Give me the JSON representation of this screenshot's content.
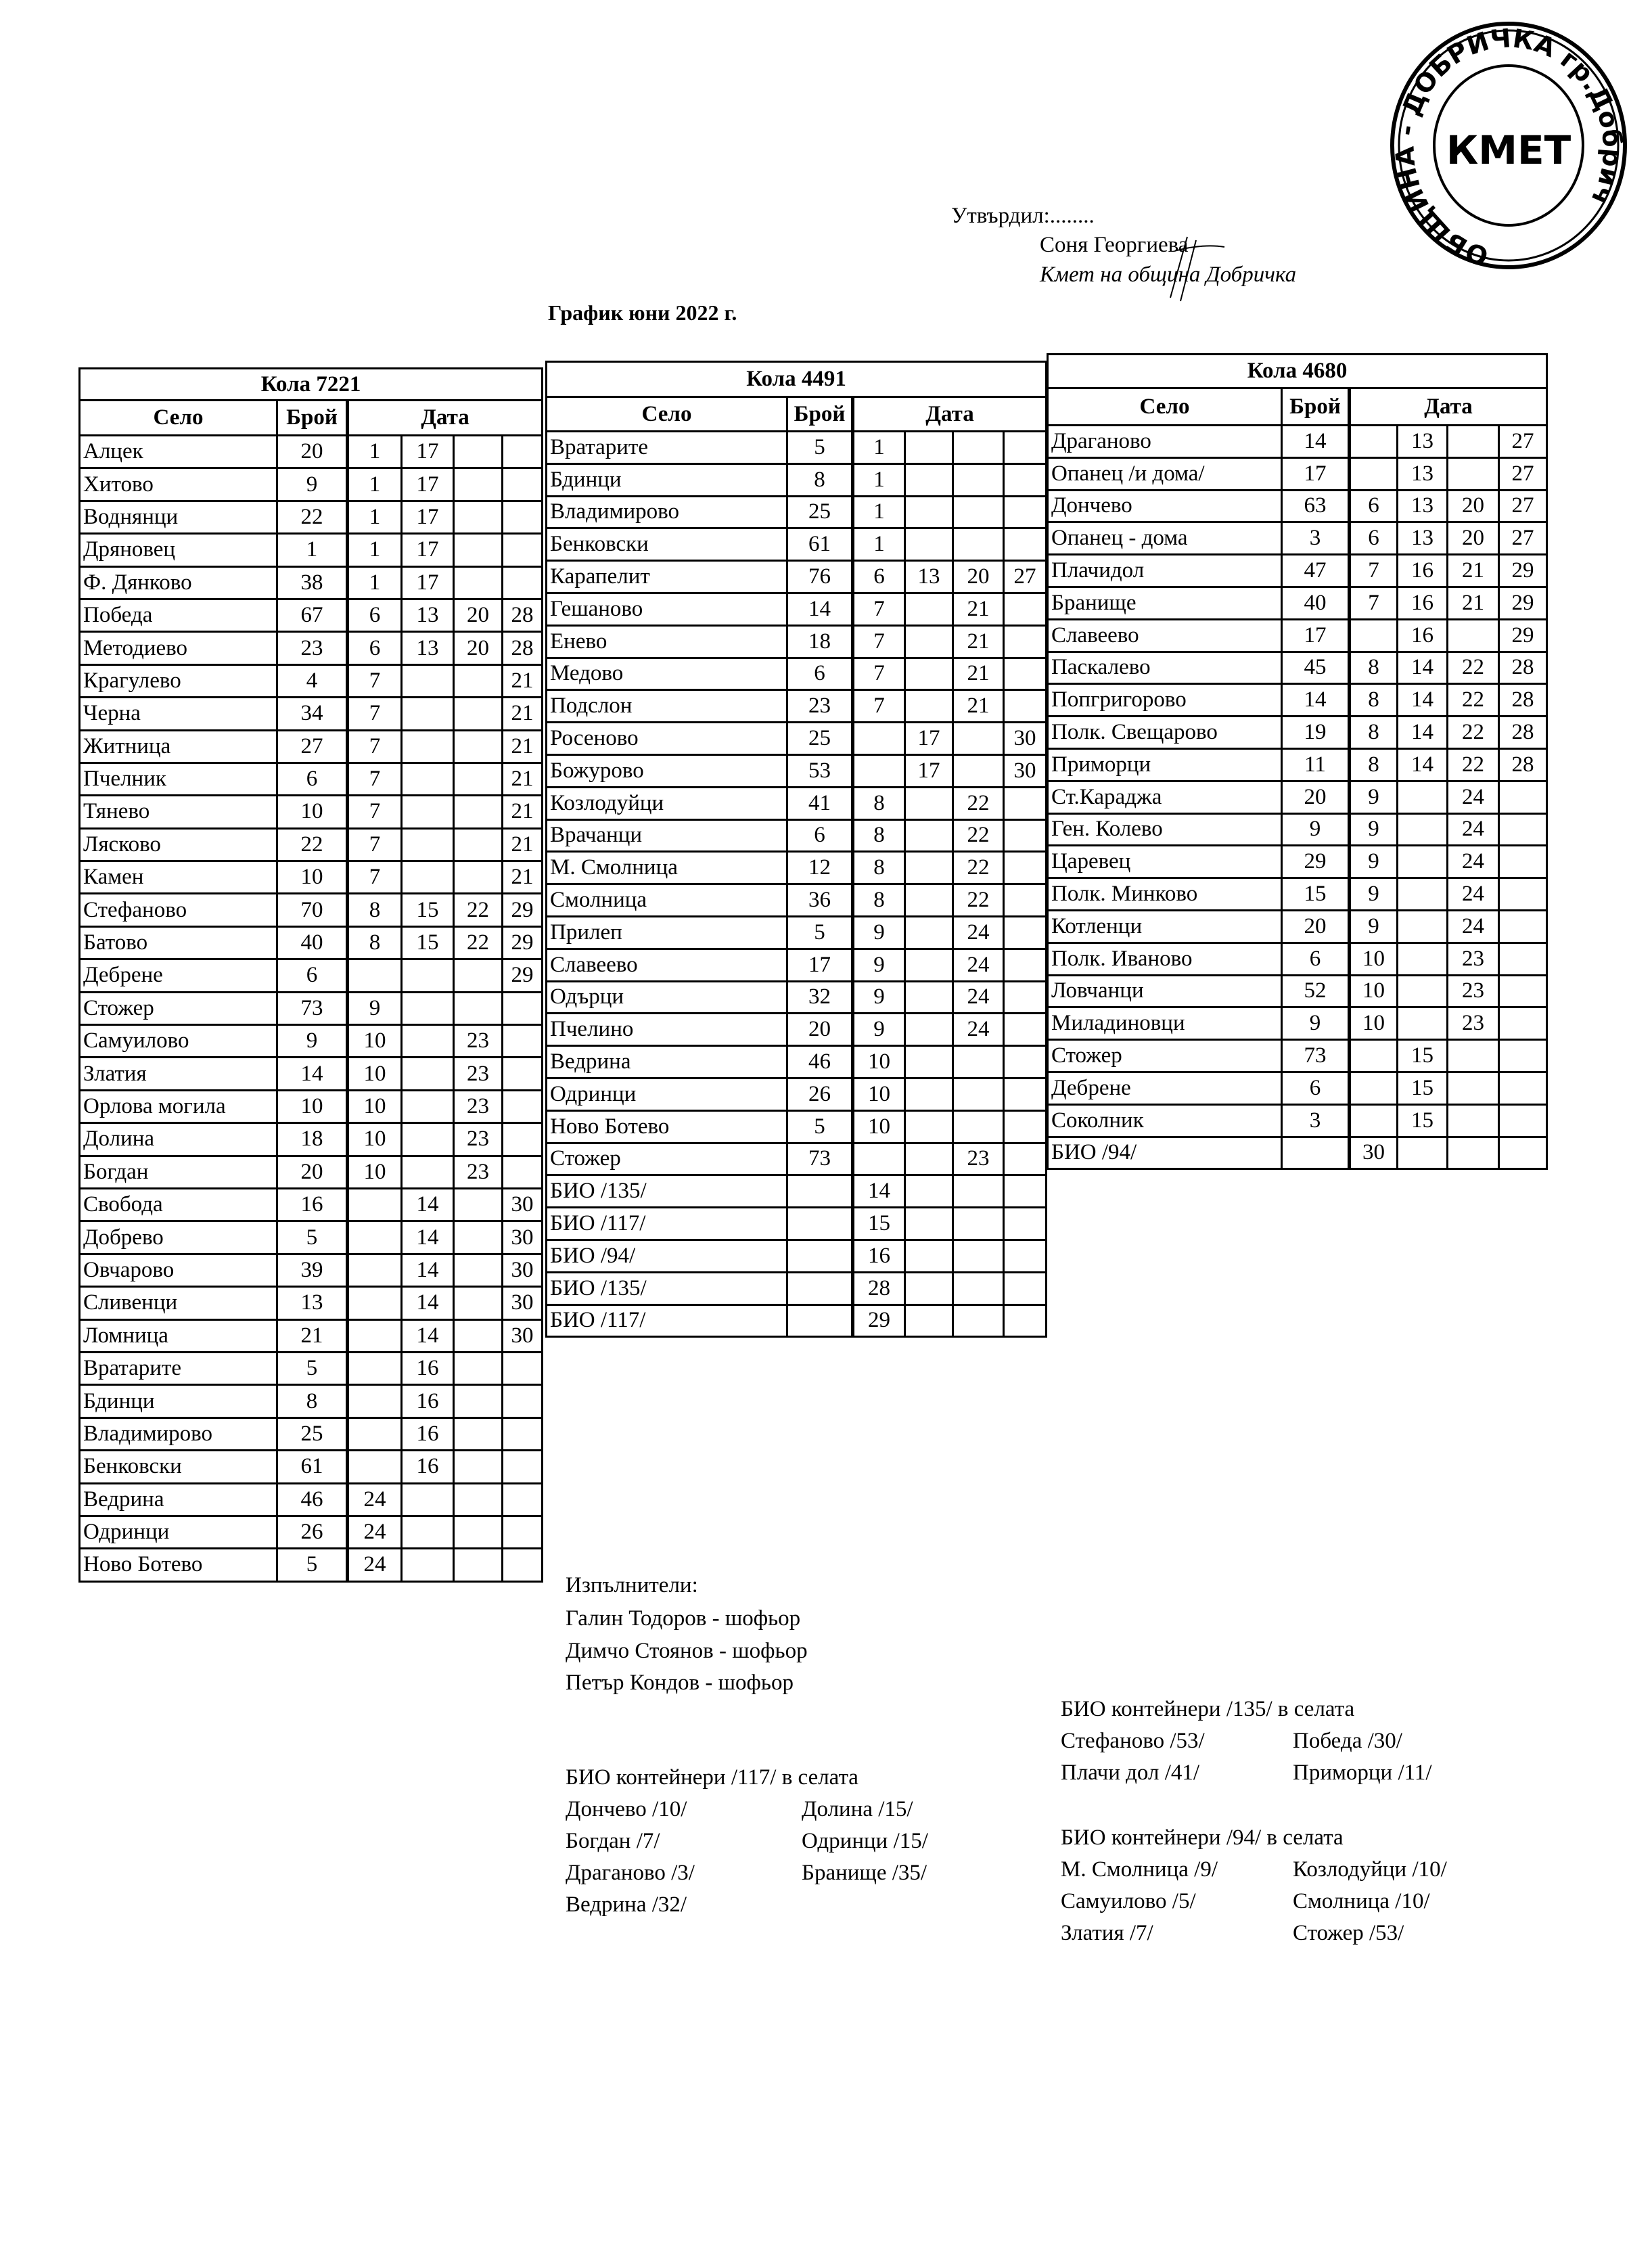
{
  "approval": {
    "label": "Утвърдил:........",
    "name": "Соня Георгиева",
    "position": "Кмет  на община Добричка"
  },
  "stamp": {
    "ring_text": "ОБЩИНА - ДОБРИЧКА  гр.Добрич",
    "center_text": "КМЕТ"
  },
  "title": "График юни 2022 г.",
  "headers": {
    "village": "Село",
    "count": "Брой",
    "date": "Дата"
  },
  "tables": [
    {
      "vehicle": "Кола 7221",
      "rows": [
        [
          "Алцек",
          "20",
          "1",
          "17",
          "",
          ""
        ],
        [
          "Хитово",
          "9",
          "1",
          "17",
          "",
          ""
        ],
        [
          "Воднянци",
          "22",
          "1",
          "17",
          "",
          ""
        ],
        [
          "Дряновец",
          "1",
          "1",
          "17",
          "",
          ""
        ],
        [
          "Ф. Дянково",
          "38",
          "1",
          "17",
          "",
          ""
        ],
        [
          "Победа",
          "67",
          "6",
          "13",
          "20",
          "28"
        ],
        [
          "Методиево",
          "23",
          "6",
          "13",
          "20",
          "28"
        ],
        [
          "Крагулево",
          "4",
          "7",
          "",
          "",
          "21"
        ],
        [
          "Черна",
          "34",
          "7",
          "",
          "",
          "21"
        ],
        [
          "Житница",
          "27",
          "7",
          "",
          "",
          "21"
        ],
        [
          "Пчелник",
          "6",
          "7",
          "",
          "",
          "21"
        ],
        [
          "Тянево",
          "10",
          "7",
          "",
          "",
          "21"
        ],
        [
          "Лясково",
          "22",
          "7",
          "",
          "",
          "21"
        ],
        [
          "Камен",
          "10",
          "7",
          "",
          "",
          "21"
        ],
        [
          "Стефаново",
          "70",
          "8",
          "15",
          "22",
          "29"
        ],
        [
          "Батово",
          "40",
          "8",
          "15",
          "22",
          "29"
        ],
        [
          "Дебрене",
          "6",
          "",
          "",
          "",
          "29"
        ],
        [
          "Стожер",
          "73",
          "9",
          "",
          "",
          ""
        ],
        [
          "Самуилово",
          "9",
          "10",
          "",
          "23",
          ""
        ],
        [
          "Златия",
          "14",
          "10",
          "",
          "23",
          ""
        ],
        [
          "Орлова могила",
          "10",
          "10",
          "",
          "23",
          ""
        ],
        [
          "Долина",
          "18",
          "10",
          "",
          "23",
          ""
        ],
        [
          "Богдан",
          "20",
          "10",
          "",
          "23",
          ""
        ],
        [
          "Свобода",
          "16",
          "",
          "14",
          "",
          "30"
        ],
        [
          "Добрево",
          "5",
          "",
          "14",
          "",
          "30"
        ],
        [
          "Овчарово",
          "39",
          "",
          "14",
          "",
          "30"
        ],
        [
          "Сливенци",
          "13",
          "",
          "14",
          "",
          "30"
        ],
        [
          "Ломница",
          "21",
          "",
          "14",
          "",
          "30"
        ],
        [
          "Вратарите",
          "5",
          "",
          "16",
          "",
          ""
        ],
        [
          "Бдинци",
          "8",
          "",
          "16",
          "",
          ""
        ],
        [
          "Владимирово",
          "25",
          "",
          "16",
          "",
          ""
        ],
        [
          "Бенковски",
          "61",
          "",
          "16",
          "",
          ""
        ],
        [
          "Ведрина",
          "46",
          "24",
          "",
          "",
          ""
        ],
        [
          "Одринци",
          "26",
          "24",
          "",
          "",
          ""
        ],
        [
          "Ново Ботево",
          "5",
          "24",
          "",
          "",
          ""
        ]
      ]
    },
    {
      "vehicle": "Кола 4491",
      "rows": [
        [
          "Вратарите",
          "5",
          "1",
          "",
          "",
          ""
        ],
        [
          "Бдинци",
          "8",
          "1",
          "",
          "",
          ""
        ],
        [
          "Владимирово",
          "25",
          "1",
          "",
          "",
          ""
        ],
        [
          "Бенковски",
          "61",
          "1",
          "",
          "",
          ""
        ],
        [
          "Карапелит",
          "76",
          "6",
          "13",
          "20",
          "27"
        ],
        [
          "Гешаново",
          "14",
          "7",
          "",
          "21",
          ""
        ],
        [
          "Енево",
          "18",
          "7",
          "",
          "21",
          ""
        ],
        [
          "Медово",
          "6",
          "7",
          "",
          "21",
          ""
        ],
        [
          "Подслон",
          "23",
          "7",
          "",
          "21",
          ""
        ],
        [
          "Росеново",
          "25",
          "",
          "17",
          "",
          "30"
        ],
        [
          "Божурово",
          "53",
          "",
          "17",
          "",
          "30"
        ],
        [
          "Козлодуйци",
          "41",
          "8",
          "",
          "22",
          ""
        ],
        [
          "Врачанци",
          "6",
          "8",
          "",
          "22",
          ""
        ],
        [
          "М. Смолница",
          "12",
          "8",
          "",
          "22",
          ""
        ],
        [
          "Смолница",
          "36",
          "8",
          "",
          "22",
          ""
        ],
        [
          "Прилеп",
          "5",
          "9",
          "",
          "24",
          ""
        ],
        [
          "Славеево",
          "17",
          "9",
          "",
          "24",
          ""
        ],
        [
          "Одърци",
          "32",
          "9",
          "",
          "24",
          ""
        ],
        [
          "Пчелино",
          "20",
          "9",
          "",
          "24",
          ""
        ],
        [
          "Ведрина",
          "46",
          "10",
          "",
          "",
          ""
        ],
        [
          "Одринци",
          "26",
          "10",
          "",
          "",
          ""
        ],
        [
          "Ново Ботево",
          "5",
          "10",
          "",
          "",
          ""
        ],
        [
          "Стожер",
          "73",
          "",
          "",
          "23",
          ""
        ],
        [
          "БИО /135/",
          "",
          "14",
          "",
          "",
          ""
        ],
        [
          "БИО /117/",
          "",
          "15",
          "",
          "",
          ""
        ],
        [
          "БИО /94/",
          "",
          "16",
          "",
          "",
          ""
        ],
        [
          "БИО /135/",
          "",
          "28",
          "",
          "",
          ""
        ],
        [
          "БИО /117/",
          "",
          "29",
          "",
          "",
          ""
        ]
      ]
    },
    {
      "vehicle": "Кола 4680",
      "rows": [
        [
          "Драганово",
          "14",
          "",
          "13",
          "",
          "27"
        ],
        [
          "Опанец /и дома/",
          "17",
          "",
          "13",
          "",
          "27"
        ],
        [
          "Дончево",
          "63",
          "6",
          "13",
          "20",
          "27"
        ],
        [
          "Опанец - дома",
          "3",
          "6",
          "13",
          "20",
          "27"
        ],
        [
          "Плачидол",
          "47",
          "7",
          "16",
          "21",
          "29"
        ],
        [
          "Бранище",
          "40",
          "7",
          "16",
          "21",
          "29"
        ],
        [
          "Славеево",
          "17",
          "",
          "16",
          "",
          "29"
        ],
        [
          "Паскалево",
          "45",
          "8",
          "14",
          "22",
          "28"
        ],
        [
          "Попгригорово",
          "14",
          "8",
          "14",
          "22",
          "28"
        ],
        [
          "Полк. Свещарово",
          "19",
          "8",
          "14",
          "22",
          "28"
        ],
        [
          "Приморци",
          "11",
          "8",
          "14",
          "22",
          "28"
        ],
        [
          "Ст.Караджа",
          "20",
          "9",
          "",
          "24",
          ""
        ],
        [
          "Ген. Колево",
          "9",
          "9",
          "",
          "24",
          ""
        ],
        [
          "Царевец",
          "29",
          "9",
          "",
          "24",
          ""
        ],
        [
          "Полк. Минково",
          "15",
          "9",
          "",
          "24",
          ""
        ],
        [
          "Котленци",
          "20",
          "9",
          "",
          "24",
          ""
        ],
        [
          "Полк. Иваново",
          "6",
          "10",
          "",
          "23",
          ""
        ],
        [
          "Ловчанци",
          "52",
          "10",
          "",
          "23",
          ""
        ],
        [
          "Миладиновци",
          "9",
          "10",
          "",
          "23",
          ""
        ],
        [
          "Стожер",
          "73",
          "",
          "15",
          "",
          ""
        ],
        [
          "Дебрене",
          "6",
          "",
          "15",
          "",
          ""
        ],
        [
          "Соколник",
          "3",
          "",
          "15",
          "",
          ""
        ],
        [
          "БИО /94/",
          "",
          "30",
          "",
          "",
          ""
        ]
      ]
    }
  ],
  "executors": {
    "heading": "Изпълнители:",
    "people": [
      "Галин Тодоров - шофьор",
      "Димчо Стоянов - шофьор",
      "Петър Кондов - шофьор"
    ]
  },
  "bio": {
    "b117": {
      "heading": "БИО контейнери /117/ в селата",
      "col1": [
        "Дончево /10/",
        "Богдан /7/",
        "Драганово /3/",
        "Ведрина /32/"
      ],
      "col2": [
        "Долина /15/",
        "Одринци /15/",
        "Бранище /35/"
      ]
    },
    "b135": {
      "heading": "БИО контейнери /135/ в селата",
      "col1": [
        "Стефаново /53/",
        "Плачи дол /41/"
      ],
      "col2": [
        "Победа /30/",
        "Приморци /11/"
      ]
    },
    "b94": {
      "heading": "БИО контейнери /94/ в селата",
      "col1": [
        "М. Смолница /9/",
        "Самуилово /5/",
        "Златия /7/"
      ],
      "col2": [
        "Козлодуйци /10/",
        "Смолница /10/",
        "Стожер /53/"
      ]
    }
  }
}
